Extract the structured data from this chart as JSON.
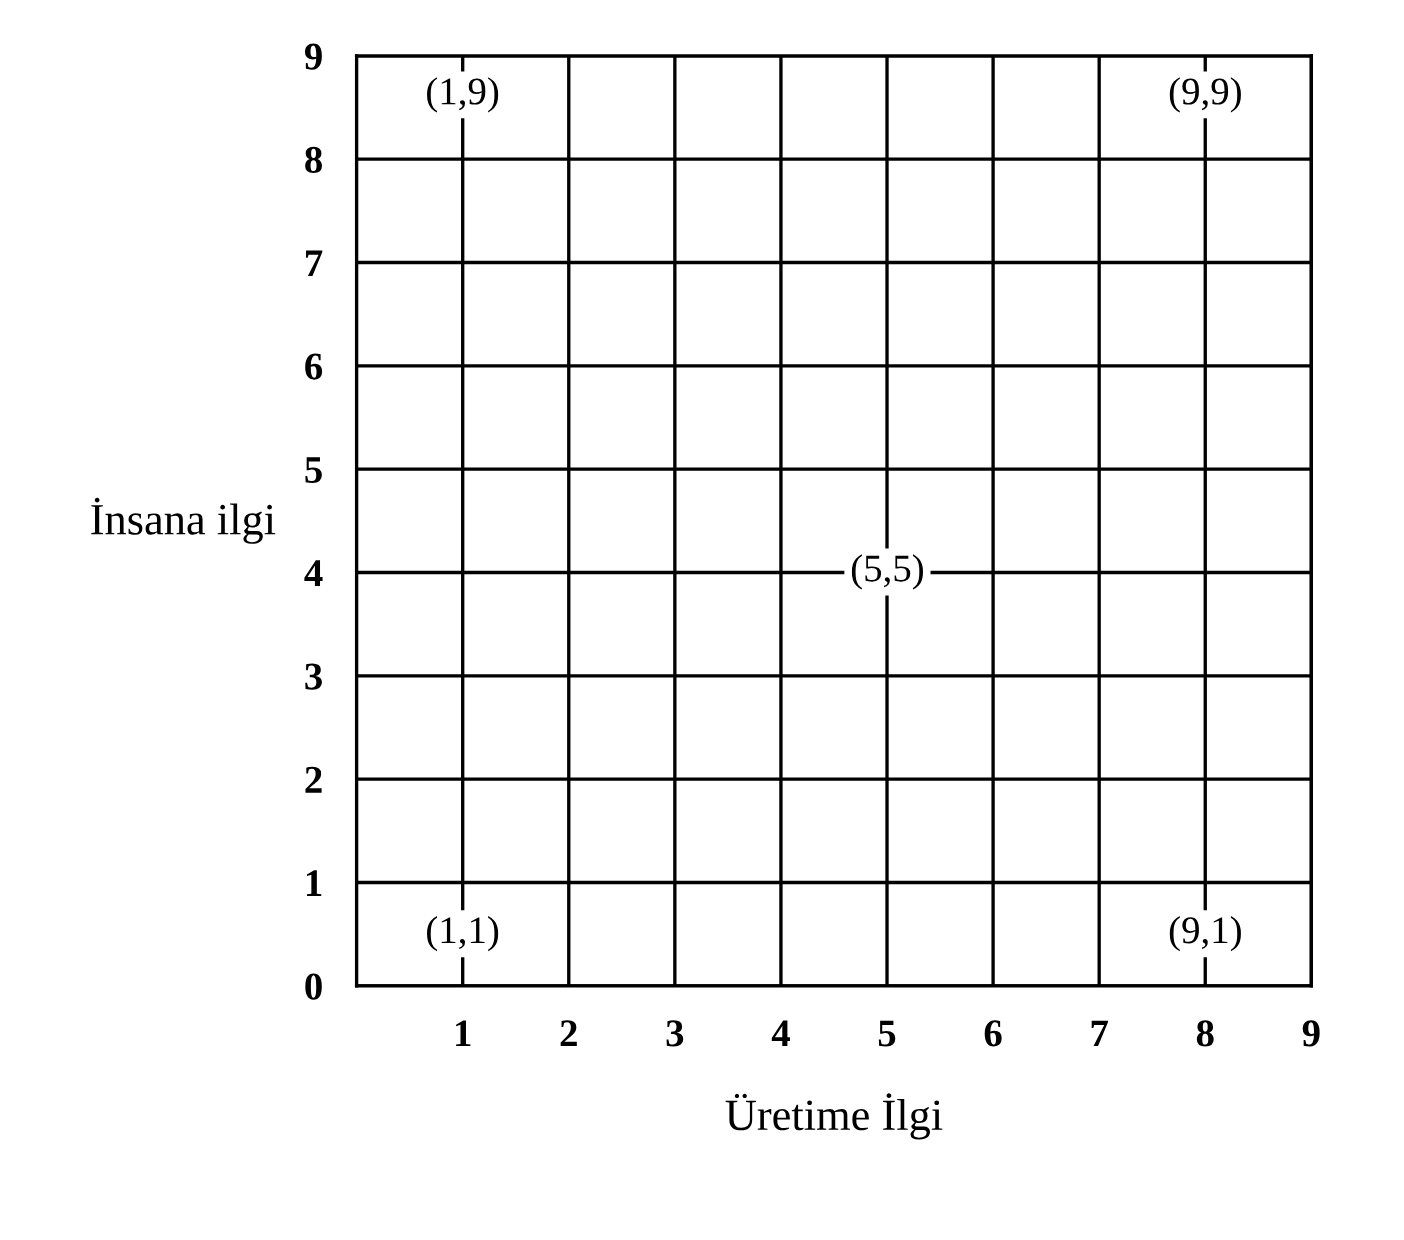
{
  "chart_data": {
    "type": "scatter",
    "xlabel": "Üretime İlgi",
    "ylabel": "İnsana ilgi",
    "annotations": [
      "(1,9)",
      "(9,9)",
      "(5,5)",
      "(1,1)",
      "(9,1)"
    ],
    "xlim": [
      0,
      9
    ],
    "ylim": [
      0,
      9
    ],
    "xticks": [
      1,
      2,
      3,
      4,
      5,
      6,
      7,
      8,
      9
    ],
    "yticks": [
      0,
      1,
      2,
      3,
      4,
      5,
      6,
      7,
      8,
      9
    ],
    "grid": true
  }
}
